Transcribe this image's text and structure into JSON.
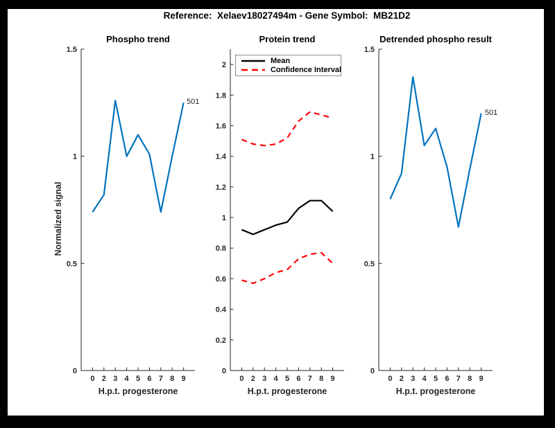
{
  "figure_title": "Reference:  Xelaev18027494m - Gene Symbol:  MB21D2",
  "colors": {
    "phospho_line": "#0072bd",
    "mean_line": "#000000",
    "confidence_line": "#ff0000",
    "axis": "#262626"
  },
  "chart_data": [
    {
      "type": "line",
      "title": "Phospho trend",
      "xlabel": "H.p.t. progesterone",
      "ylabel": "Normalized signal",
      "x_tick_labels": [
        "0",
        "2",
        "3",
        "4",
        "5",
        "6",
        "7",
        "8",
        "9"
      ],
      "y_ticks": [
        0,
        0.5,
        1,
        1.5
      ],
      "y_tick_labels": [
        "0",
        "0.5",
        "1",
        "1.5"
      ],
      "ylim": [
        0,
        1.5
      ],
      "grid": false,
      "end_label": "501",
      "series": [
        {
          "name": "501",
          "color": "#0072bd",
          "style": "solid",
          "values": [
            0.74,
            0.82,
            1.26,
            1.0,
            1.1,
            1.01,
            0.74,
            1.0,
            1.25
          ]
        }
      ]
    },
    {
      "type": "line",
      "title": "Protein trend",
      "xlabel": "H.p.t. progesterone",
      "ylabel": "",
      "x_tick_labels": [
        "0",
        "2",
        "3",
        "4",
        "5",
        "6",
        "7",
        "8",
        "9"
      ],
      "y_ticks": [
        0,
        0.2,
        0.4,
        0.6,
        0.8,
        1,
        1.2,
        1.4,
        1.6,
        1.8,
        2
      ],
      "y_tick_labels": [
        "0",
        "0.2",
        "0.4",
        "0.6",
        "0.8",
        "1",
        "1.2",
        "1.4",
        "1.6",
        "1.8",
        "2"
      ],
      "ylim": [
        0,
        2.1
      ],
      "grid": false,
      "legend": {
        "position": "northwest",
        "entries": [
          {
            "label": "Mean",
            "color": "#000000",
            "style": "solid"
          },
          {
            "label": "Confidence Interval",
            "color": "#ff0000",
            "style": "dashed"
          }
        ]
      },
      "series": [
        {
          "name": "Mean",
          "color": "#000000",
          "style": "solid",
          "values": [
            0.92,
            0.89,
            0.92,
            0.95,
            0.97,
            1.06,
            1.11,
            1.11,
            1.04
          ]
        },
        {
          "name": "Confidence Interval upper",
          "color": "#ff0000",
          "style": "dashed",
          "values": [
            1.51,
            1.48,
            1.47,
            1.48,
            1.52,
            1.63,
            1.69,
            1.67,
            1.65
          ]
        },
        {
          "name": "Confidence Interval lower",
          "color": "#ff0000",
          "style": "dashed",
          "values": [
            0.59,
            0.57,
            0.6,
            0.64,
            0.66,
            0.73,
            0.76,
            0.77,
            0.7
          ]
        }
      ]
    },
    {
      "type": "line",
      "title": "Detrended phospho result",
      "xlabel": "H.p.t. progesterone",
      "ylabel": "",
      "x_tick_labels": [
        "0",
        "2",
        "3",
        "4",
        "5",
        "6",
        "7",
        "8",
        "9"
      ],
      "y_ticks": [
        0,
        0.5,
        1,
        1.5
      ],
      "y_tick_labels": [
        "0",
        "0.5",
        "1",
        "1.5"
      ],
      "ylim": [
        0,
        1.5
      ],
      "grid": false,
      "end_label": "501",
      "series": [
        {
          "name": "501",
          "color": "#0072bd",
          "style": "solid",
          "values": [
            0.8,
            0.92,
            1.37,
            1.05,
            1.13,
            0.95,
            0.67,
            0.94,
            1.2
          ]
        }
      ]
    }
  ]
}
